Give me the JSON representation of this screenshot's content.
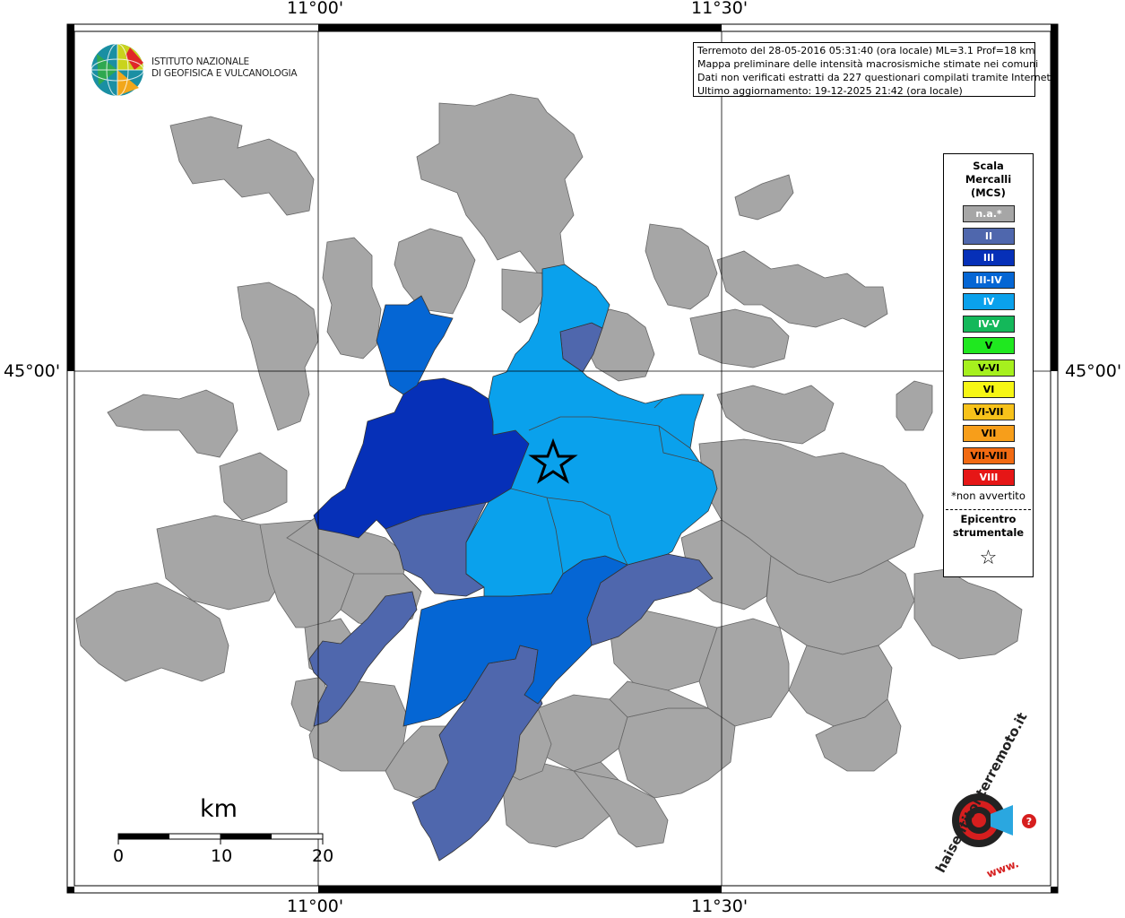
{
  "coordinates": {
    "lon_left": "11°00'",
    "lon_right": "11°30'",
    "lat_middle": "45°00'"
  },
  "info": {
    "line1": "Terremoto del 28-05-2016 05:31:40 (ora locale) ML=3.1 Prof=18 km",
    "line2": "Mappa preliminare delle intensità macrosismiche stimate nei comuni",
    "line3": "Dati non verificati estratti da 227 questionari compilati tramite Internet.",
    "line4": "Ultimo aggiornamento: 19-12-2025 21:42 (ora locale)"
  },
  "logo": {
    "line1": "ISTITUTO NAZIONALE",
    "line2": "DI GEOFISICA E VULCANOLOGIA"
  },
  "legend": {
    "title1": "Scala",
    "title2": "Mercalli",
    "title3": "(MCS)",
    "items": [
      {
        "label": "n.a.*",
        "color": "#a6a6a6",
        "text_color": "#ffffff"
      },
      {
        "label": "II",
        "color": "#4f67ad",
        "text_color": "#ffffff"
      },
      {
        "label": "III",
        "color": "#0630b8",
        "text_color": "#ffffff"
      },
      {
        "label": "III-IV",
        "color": "#0566d4",
        "text_color": "#ffffff"
      },
      {
        "label": "IV",
        "color": "#0aa1ec",
        "text_color": "#ffffff"
      },
      {
        "label": "IV-V",
        "color": "#14b85a",
        "text_color": "#ffffff"
      },
      {
        "label": "V",
        "color": "#1fe81f",
        "text_color": "#000000"
      },
      {
        "label": "V-VI",
        "color": "#a6f01e",
        "text_color": "#000000"
      },
      {
        "label": "VI",
        "color": "#f6f614",
        "text_color": "#000000"
      },
      {
        "label": "VI-VII",
        "color": "#f7c21a",
        "text_color": "#000000"
      },
      {
        "label": "VII",
        "color": "#f79e1a",
        "text_color": "#000000"
      },
      {
        "label": "VII-VIII",
        "color": "#f26a12",
        "text_color": "#000000"
      },
      {
        "label": "VIII",
        "color": "#e61616",
        "text_color": "#ffffff"
      }
    ],
    "note": "*non avvertito",
    "epicenter1": "Epicentro",
    "epicenter2": "strumentale",
    "star": "☆"
  },
  "scale_bar": {
    "unit": "km",
    "ticks": [
      "0",
      "10",
      "20"
    ]
  },
  "hst_logo": {
    "text": "haisentitoilterremoto.it",
    "www": "www."
  }
}
